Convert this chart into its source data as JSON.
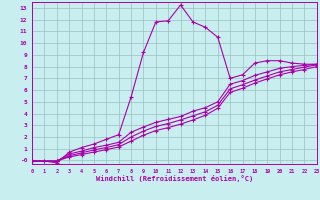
{
  "xlabel": "Windchill (Refroidissement éolien,°C)",
  "background_color": "#c8eef0",
  "line_color": "#aa00aa",
  "grid_color": "#9bbfbf",
  "xlim": [
    0,
    23
  ],
  "ylim": [
    -0.3,
    13.5
  ],
  "xticks": [
    0,
    1,
    2,
    3,
    4,
    5,
    6,
    7,
    8,
    9,
    10,
    11,
    12,
    13,
    14,
    15,
    16,
    17,
    18,
    19,
    20,
    21,
    22,
    23
  ],
  "yticks": [
    0,
    1,
    2,
    3,
    4,
    5,
    6,
    7,
    8,
    9,
    10,
    11,
    12,
    13
  ],
  "ytick_labels": [
    "-0",
    "1",
    "2",
    "3",
    "4",
    "5",
    "6",
    "7",
    "8",
    "9",
    "10",
    "11",
    "12",
    "13"
  ],
  "line1_x": [
    0,
    1,
    2,
    3,
    4,
    5,
    6,
    7,
    8,
    9,
    10,
    11,
    12,
    13,
    14,
    15,
    16,
    17,
    18,
    19,
    20,
    21,
    22,
    23
  ],
  "line1_y": [
    -0.05,
    -0.05,
    -0.2,
    0.7,
    1.1,
    1.4,
    1.8,
    2.2,
    5.4,
    9.2,
    11.8,
    11.9,
    13.25,
    11.8,
    11.35,
    10.5,
    7.0,
    7.3,
    8.3,
    8.5,
    8.5,
    8.3,
    8.2,
    8.2
  ],
  "line2_x": [
    0,
    2,
    3,
    4,
    5,
    6,
    7,
    8,
    9,
    10,
    11,
    12,
    13,
    14,
    15,
    16,
    17,
    18,
    19,
    20,
    21,
    22,
    23
  ],
  "line2_y": [
    -0.05,
    -0.05,
    0.55,
    0.8,
    1.1,
    1.3,
    1.55,
    2.4,
    2.85,
    3.25,
    3.5,
    3.75,
    4.2,
    4.5,
    5.0,
    6.5,
    6.8,
    7.25,
    7.55,
    7.85,
    8.0,
    8.1,
    8.2
  ],
  "line3_x": [
    0,
    2,
    3,
    4,
    5,
    6,
    7,
    8,
    9,
    10,
    11,
    12,
    13,
    14,
    15,
    16,
    17,
    18,
    19,
    20,
    21,
    22,
    23
  ],
  "line3_y": [
    -0.05,
    -0.05,
    0.4,
    0.65,
    0.9,
    1.1,
    1.35,
    2.0,
    2.5,
    2.9,
    3.15,
    3.45,
    3.8,
    4.15,
    4.7,
    6.1,
    6.45,
    6.85,
    7.2,
    7.55,
    7.75,
    7.95,
    8.15
  ],
  "line4_x": [
    0,
    2,
    3,
    4,
    5,
    6,
    7,
    8,
    9,
    10,
    11,
    12,
    13,
    14,
    15,
    16,
    17,
    18,
    19,
    20,
    21,
    22,
    23
  ],
  "line4_y": [
    -0.05,
    -0.05,
    0.3,
    0.5,
    0.72,
    0.92,
    1.15,
    1.65,
    2.15,
    2.55,
    2.8,
    3.1,
    3.45,
    3.85,
    4.45,
    5.8,
    6.15,
    6.6,
    6.95,
    7.3,
    7.55,
    7.75,
    8.0
  ]
}
